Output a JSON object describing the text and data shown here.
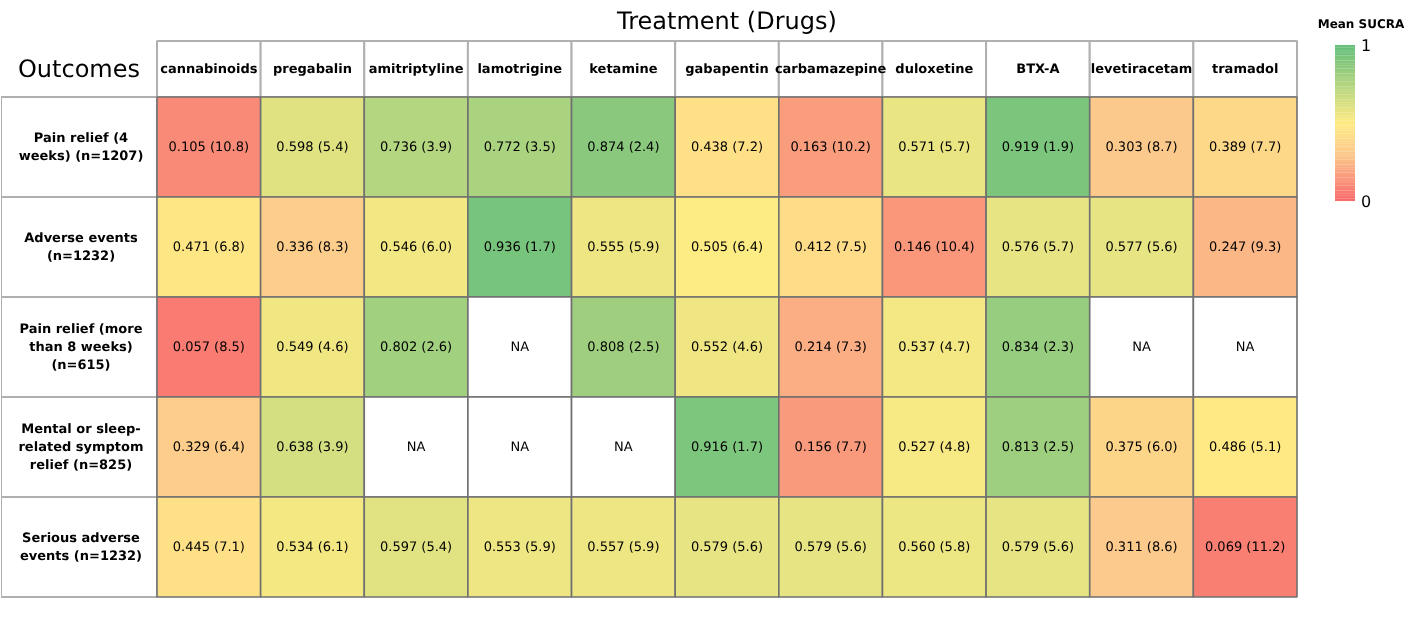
{
  "chart_data": {
    "type": "heatmap",
    "xlabel": "Treatment (Drugs)",
    "ylabel": "Outcomes",
    "clabel": "Mean SUCRA",
    "categories": [
      "cannabinoids",
      "pregabalin",
      "amitriptyline",
      "lamotrigine",
      "ketamine",
      "gabapentin",
      "carbamazepine",
      "duloxetine",
      "BTX-A",
      "levetiracetam",
      "tramadol"
    ],
    "y_categories": [
      "Pain relief (4 weeks) (n=1207)",
      "Adverse events (n=1232)",
      "Pain relief (more than 8 weeks) (n=615)",
      "Mental or sleep-related symptom relief (n=825)",
      "Serious adverse events (n=1232)"
    ],
    "cells": [
      [
        0.105,
        0.598,
        0.736,
        0.772,
        0.874,
        0.438,
        0.163,
        0.571,
        0.919,
        0.303,
        0.389
      ],
      [
        0.471,
        0.336,
        0.546,
        0.936,
        0.555,
        0.505,
        0.412,
        0.146,
        0.576,
        0.577,
        0.247
      ],
      [
        0.057,
        0.549,
        0.802,
        null,
        0.808,
        0.552,
        0.214,
        0.537,
        0.834,
        null,
        null
      ],
      [
        0.329,
        0.638,
        null,
        null,
        null,
        0.916,
        0.156,
        0.527,
        0.813,
        0.375,
        0.486
      ],
      [
        0.445,
        0.534,
        0.597,
        0.553,
        0.557,
        0.579,
        0.579,
        0.56,
        0.579,
        0.311,
        0.069
      ]
    ],
    "cell_labels": [
      [
        "0.105 (10.8)",
        "0.598 (5.4)",
        "0.736 (3.9)",
        "0.772 (3.5)",
        "0.874 (2.4)",
        "0.438 (7.2)",
        "0.163 (10.2)",
        "0.571 (5.7)",
        "0.919 (1.9)",
        "0.303 (8.7)",
        "0.389 (7.7)"
      ],
      [
        "0.471 (6.8)",
        "0.336 (8.3)",
        "0.546 (6.0)",
        "0.936 (1.7)",
        "0.555 (5.9)",
        "0.505 (6.4)",
        "0.412 (7.5)",
        "0.146 (10.4)",
        "0.576 (5.7)",
        "0.577 (5.6)",
        "0.247 (9.3)"
      ],
      [
        "0.057 (8.5)",
        "0.549 (4.6)",
        "0.802 (2.6)",
        "NA",
        "0.808 (2.5)",
        "0.552 (4.6)",
        "0.214 (7.3)",
        "0.537 (4.7)",
        "0.834 (2.3)",
        "NA",
        "NA"
      ],
      [
        "0.329 (6.4)",
        "0.638 (3.9)",
        "NA",
        "NA",
        "NA",
        "0.916 (1.7)",
        "0.156 (7.7)",
        "0.527 (4.8)",
        "0.813 (2.5)",
        "0.375 (6.0)",
        "0.486 (5.1)"
      ],
      [
        "0.445 (7.1)",
        "0.534 (6.1)",
        "0.597 (5.4)",
        "0.553 (5.9)",
        "0.557 (5.9)",
        "0.579 (5.6)",
        "0.579 (5.6)",
        "0.560 (5.8)",
        "0.579 (5.6)",
        "0.311 (8.6)",
        "0.069 (11.2)"
      ]
    ],
    "clim": [
      0,
      1
    ],
    "cticks": [
      0,
      1
    ]
  }
}
